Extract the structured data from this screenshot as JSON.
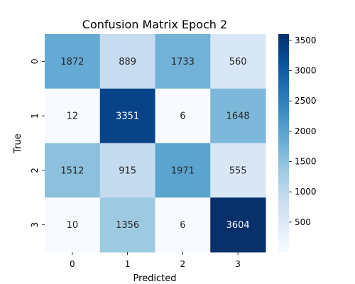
{
  "chart_data": {
    "type": "heatmap",
    "title": "Confusion Matrix Epoch 2",
    "xlabel": "Predicted",
    "ylabel": "True",
    "x_categories": [
      "0",
      "1",
      "2",
      "3"
    ],
    "y_categories": [
      "0",
      "1",
      "2",
      "3"
    ],
    "values": [
      [
        1872,
        889,
        1733,
        560
      ],
      [
        12,
        3351,
        6,
        1648
      ],
      [
        1512,
        915,
        1971,
        555
      ],
      [
        10,
        1356,
        6,
        3604
      ]
    ],
    "colorbar": {
      "min": 6,
      "max": 3604,
      "ticks": [
        500,
        1000,
        1500,
        2000,
        2500,
        3000,
        3500
      ],
      "tick_labels": [
        "500",
        "1000",
        "1500",
        "2000",
        "2500",
        "3000",
        "3500"
      ]
    },
    "colormap": "Blues",
    "colormap_stops": [
      "#f7fbff",
      "#deebf7",
      "#c6dbef",
      "#9ecae1",
      "#6baed6",
      "#4292c6",
      "#2171b5",
      "#08519c",
      "#08306b"
    ]
  }
}
